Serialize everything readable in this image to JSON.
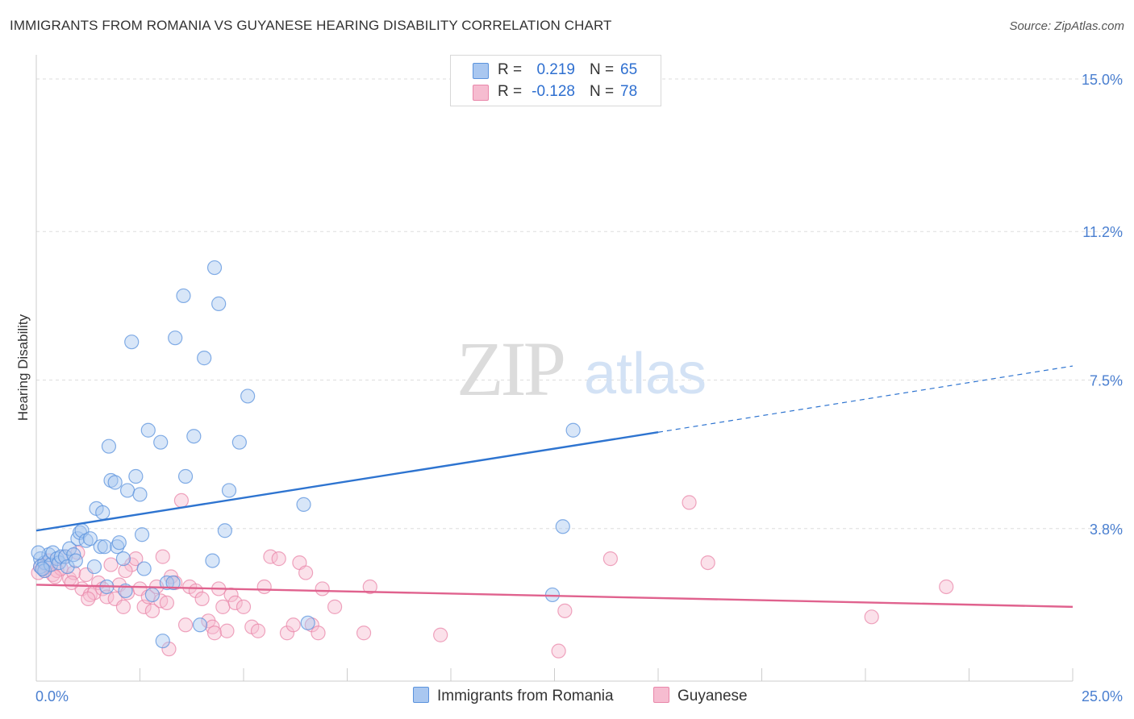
{
  "title": "IMMIGRANTS FROM ROMANIA VS GUYANESE HEARING DISABILITY CORRELATION CHART",
  "source": "Source: ZipAtlas.com",
  "watermark": {
    "zip": "ZIP",
    "atlas": "atlas"
  },
  "colors": {
    "blue_fill": "#a9c7f0",
    "blue_stroke": "#5b93dd",
    "blue_line": "#2e74d0",
    "pink_fill": "#f6bcd0",
    "pink_stroke": "#e987aa",
    "pink_line": "#e0628e",
    "tick_text": "#4a7fd0",
    "grid": "#dddddd"
  },
  "legend": {
    "rows": [
      {
        "r_label": "R =",
        "r_value": "0.219",
        "n_label": "N =",
        "n_value": "65",
        "color": "#a9c7f0",
        "stroke": "#5b93dd"
      },
      {
        "r_label": "R =",
        "r_value": "-0.128",
        "n_label": "N =",
        "n_value": "78",
        "color": "#f6bcd0",
        "stroke": "#e987aa"
      }
    ]
  },
  "bottom_legend": [
    {
      "label": "Immigrants from Romania",
      "color": "#a9c7f0",
      "stroke": "#5b93dd"
    },
    {
      "label": "Guyanese",
      "color": "#f6bcd0",
      "stroke": "#e987aa"
    }
  ],
  "chart_data": {
    "type": "scatter",
    "title": "IMMIGRANTS FROM ROMANIA VS GUYANESE HEARING DISABILITY CORRELATION CHART",
    "xlabel": "",
    "ylabel": "Hearing Disability",
    "xlim": [
      0,
      25
    ],
    "ylim": [
      0,
      15
    ],
    "x_tick_labels": [
      "0.0%",
      "25.0%"
    ],
    "y_ticks": [
      3.8,
      7.5,
      11.2,
      15.0
    ],
    "y_tick_labels": [
      "3.8%",
      "7.5%",
      "11.2%",
      "15.0%"
    ],
    "grid": true,
    "series": [
      {
        "name": "Immigrants from Romania",
        "color": "#a9c7f0",
        "trend": {
          "x0": 0.0,
          "y0": 3.75,
          "x1": 15.0,
          "y1": 6.2,
          "x_dash_end": 25.0,
          "y_dash_end": 7.85
        },
        "points": [
          [
            0.1,
            3.05
          ],
          [
            0.1,
            2.85
          ],
          [
            0.2,
            2.95
          ],
          [
            0.2,
            2.75
          ],
          [
            0.3,
            3.15
          ],
          [
            0.35,
            2.9
          ],
          [
            0.4,
            3.2
          ],
          [
            0.5,
            3.05
          ],
          [
            0.55,
            2.95
          ],
          [
            0.6,
            3.1
          ],
          [
            0.7,
            3.1
          ],
          [
            0.75,
            2.85
          ],
          [
            0.8,
            3.3
          ],
          [
            0.9,
            3.15
          ],
          [
            0.95,
            3.0
          ],
          [
            1.0,
            3.55
          ],
          [
            1.05,
            3.7
          ],
          [
            1.1,
            3.75
          ],
          [
            1.2,
            3.5
          ],
          [
            1.3,
            3.55
          ],
          [
            1.4,
            2.85
          ],
          [
            1.45,
            4.3
          ],
          [
            1.55,
            3.35
          ],
          [
            1.6,
            4.2
          ],
          [
            1.65,
            3.35
          ],
          [
            1.7,
            2.35
          ],
          [
            1.75,
            5.85
          ],
          [
            1.8,
            5.0
          ],
          [
            1.9,
            4.95
          ],
          [
            1.95,
            3.35
          ],
          [
            2.0,
            3.45
          ],
          [
            2.1,
            3.05
          ],
          [
            2.15,
            2.25
          ],
          [
            2.2,
            4.75
          ],
          [
            2.3,
            8.45
          ],
          [
            2.4,
            5.1
          ],
          [
            2.5,
            4.65
          ],
          [
            2.55,
            3.65
          ],
          [
            2.6,
            2.8
          ],
          [
            2.7,
            6.25
          ],
          [
            2.8,
            2.15
          ],
          [
            3.0,
            5.95
          ],
          [
            3.05,
            1.0
          ],
          [
            3.15,
            2.45
          ],
          [
            3.3,
            2.45
          ],
          [
            3.35,
            8.55
          ],
          [
            3.55,
            9.6
          ],
          [
            3.6,
            5.1
          ],
          [
            3.8,
            6.1
          ],
          [
            3.95,
            1.4
          ],
          [
            4.05,
            8.05
          ],
          [
            4.25,
            3.0
          ],
          [
            4.3,
            10.3
          ],
          [
            4.4,
            9.4
          ],
          [
            4.55,
            3.75
          ],
          [
            4.65,
            4.75
          ],
          [
            4.9,
            5.95
          ],
          [
            5.1,
            7.1
          ],
          [
            6.45,
            4.4
          ],
          [
            6.55,
            1.45
          ],
          [
            12.45,
            2.15
          ],
          [
            12.7,
            3.85
          ],
          [
            12.95,
            6.25
          ],
          [
            0.05,
            3.2
          ],
          [
            0.15,
            2.8
          ]
        ]
      },
      {
        "name": "Guyanese",
        "color": "#f6bcd0",
        "trend": {
          "x0": 0.0,
          "y0": 2.4,
          "x1": 25.0,
          "y1": 1.85
        },
        "points": [
          [
            0.1,
            2.85
          ],
          [
            0.2,
            2.75
          ],
          [
            0.3,
            3.0
          ],
          [
            0.4,
            2.65
          ],
          [
            0.5,
            2.75
          ],
          [
            0.6,
            2.8
          ],
          [
            0.7,
            3.1
          ],
          [
            0.8,
            2.55
          ],
          [
            0.9,
            2.7
          ],
          [
            1.0,
            3.2
          ],
          [
            1.1,
            2.3
          ],
          [
            1.2,
            2.65
          ],
          [
            1.3,
            2.15
          ],
          [
            1.4,
            2.2
          ],
          [
            1.5,
            2.45
          ],
          [
            1.6,
            2.3
          ],
          [
            1.7,
            2.1
          ],
          [
            1.8,
            2.9
          ],
          [
            1.9,
            2.05
          ],
          [
            2.0,
            2.4
          ],
          [
            2.1,
            1.85
          ],
          [
            2.2,
            2.2
          ],
          [
            2.3,
            2.9
          ],
          [
            2.4,
            3.05
          ],
          [
            2.5,
            2.3
          ],
          [
            2.6,
            1.85
          ],
          [
            2.7,
            2.1
          ],
          [
            2.8,
            1.75
          ],
          [
            2.9,
            2.35
          ],
          [
            3.0,
            2.0
          ],
          [
            3.05,
            3.1
          ],
          [
            3.15,
            1.95
          ],
          [
            3.25,
            2.6
          ],
          [
            3.35,
            2.45
          ],
          [
            3.5,
            4.5
          ],
          [
            3.6,
            1.4
          ],
          [
            3.7,
            2.35
          ],
          [
            3.85,
            2.25
          ],
          [
            4.0,
            2.05
          ],
          [
            4.15,
            1.5
          ],
          [
            4.25,
            1.35
          ],
          [
            4.3,
            1.2
          ],
          [
            4.4,
            2.3
          ],
          [
            4.5,
            1.85
          ],
          [
            4.6,
            1.25
          ],
          [
            4.7,
            2.15
          ],
          [
            4.8,
            1.95
          ],
          [
            5.0,
            1.85
          ],
          [
            5.2,
            1.35
          ],
          [
            5.35,
            1.25
          ],
          [
            5.5,
            2.35
          ],
          [
            5.65,
            3.1
          ],
          [
            5.85,
            3.05
          ],
          [
            6.05,
            1.2
          ],
          [
            6.2,
            1.4
          ],
          [
            6.35,
            2.95
          ],
          [
            6.5,
            2.7
          ],
          [
            6.65,
            1.4
          ],
          [
            6.8,
            1.2
          ],
          [
            6.9,
            2.3
          ],
          [
            7.2,
            1.85
          ],
          [
            7.9,
            1.2
          ],
          [
            8.05,
            2.35
          ],
          [
            9.75,
            1.15
          ],
          [
            12.6,
            0.75
          ],
          [
            12.75,
            1.75
          ],
          [
            13.85,
            3.05
          ],
          [
            15.75,
            4.45
          ],
          [
            16.2,
            2.95
          ],
          [
            20.15,
            1.6
          ],
          [
            21.95,
            2.35
          ],
          [
            0.05,
            2.7
          ],
          [
            0.25,
            2.9
          ],
          [
            0.45,
            2.6
          ],
          [
            3.2,
            0.8
          ],
          [
            1.25,
            2.05
          ],
          [
            2.15,
            2.75
          ],
          [
            0.85,
            2.45
          ]
        ]
      }
    ]
  }
}
